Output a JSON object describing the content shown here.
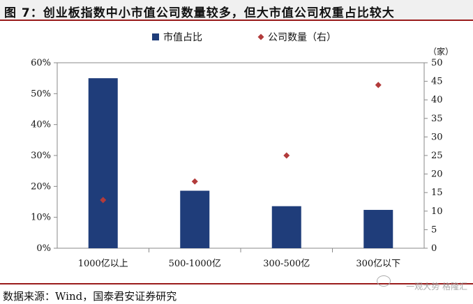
{
  "title": "图 7：创业板指数中小市值公司数量较多，但大市值公司权重占比较大",
  "source": "数据来源：Wind，国泰君安证券研究",
  "watermark": "一观大势 格隆汇",
  "colors": {
    "bar": "#1f3d7a",
    "marker": "#b23b3b",
    "accent": "#9a1b1b"
  },
  "chart_data": {
    "type": "bar",
    "categories": [
      "1000亿以上",
      "500-1000亿",
      "300-500亿",
      "300亿以下"
    ],
    "series": [
      {
        "name": "市值占比",
        "type": "bar",
        "axis": "left",
        "values": [
          55,
          18.6,
          13.6,
          12.4
        ]
      },
      {
        "name": "公司数量（右）",
        "type": "scatter",
        "marker": "diamond",
        "axis": "right",
        "values": [
          13,
          18,
          25,
          44
        ]
      }
    ],
    "y_left": {
      "ylim": [
        0,
        60
      ],
      "ticks": [
        "0%",
        "10%",
        "20%",
        "30%",
        "40%",
        "50%",
        "60%"
      ]
    },
    "y_right": {
      "ylim": [
        0,
        50
      ],
      "unit": "（家）",
      "ticks": [
        "0",
        "5",
        "10",
        "15",
        "20",
        "25",
        "30",
        "35",
        "40",
        "45",
        "50"
      ]
    },
    "legend_position": "top-center"
  }
}
